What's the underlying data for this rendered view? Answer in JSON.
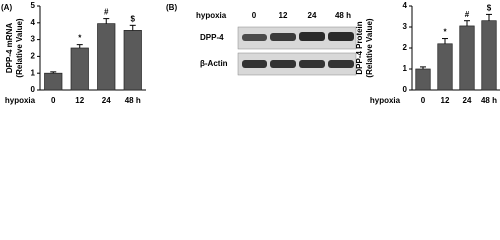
{
  "chart_data": [
    {
      "type": "bar",
      "panel_label": "(A)",
      "ylabel": [
        "DPP-4 mRNA",
        "(Relative Value)"
      ],
      "xlabel": "hypoxia",
      "categories": [
        "0",
        "12",
        "24",
        "48 h"
      ],
      "values": [
        1.0,
        2.5,
        3.95,
        3.55
      ],
      "errors": [
        0.08,
        0.2,
        0.3,
        0.3
      ],
      "annotations": [
        null,
        "*",
        "#",
        "$"
      ],
      "color": "#5a5a5a",
      "ylim": [
        0,
        5
      ],
      "yticks": [
        0,
        1,
        2,
        3,
        4,
        5
      ]
    },
    {
      "type": "bar",
      "ylabel": [
        "DPP-4 Protein",
        "(Relative Value)"
      ],
      "xlabel": "hypoxia",
      "categories": [
        "0",
        "12",
        "24",
        "48 h"
      ],
      "values": [
        1.0,
        2.2,
        3.05,
        3.3
      ],
      "errors": [
        0.1,
        0.25,
        0.25,
        0.3
      ],
      "annotations": [
        null,
        "*",
        "#",
        "$"
      ],
      "color": "#5a5a5a",
      "ylim": [
        0,
        4
      ],
      "yticks": [
        0,
        1,
        2,
        3,
        4
      ]
    }
  ],
  "blot": {
    "panel_label": "(B)",
    "row_label": "hypoxia",
    "lanes": [
      "0",
      "12",
      "24",
      "48 h"
    ],
    "bands": [
      "DPP-4",
      "β-Actin"
    ]
  }
}
